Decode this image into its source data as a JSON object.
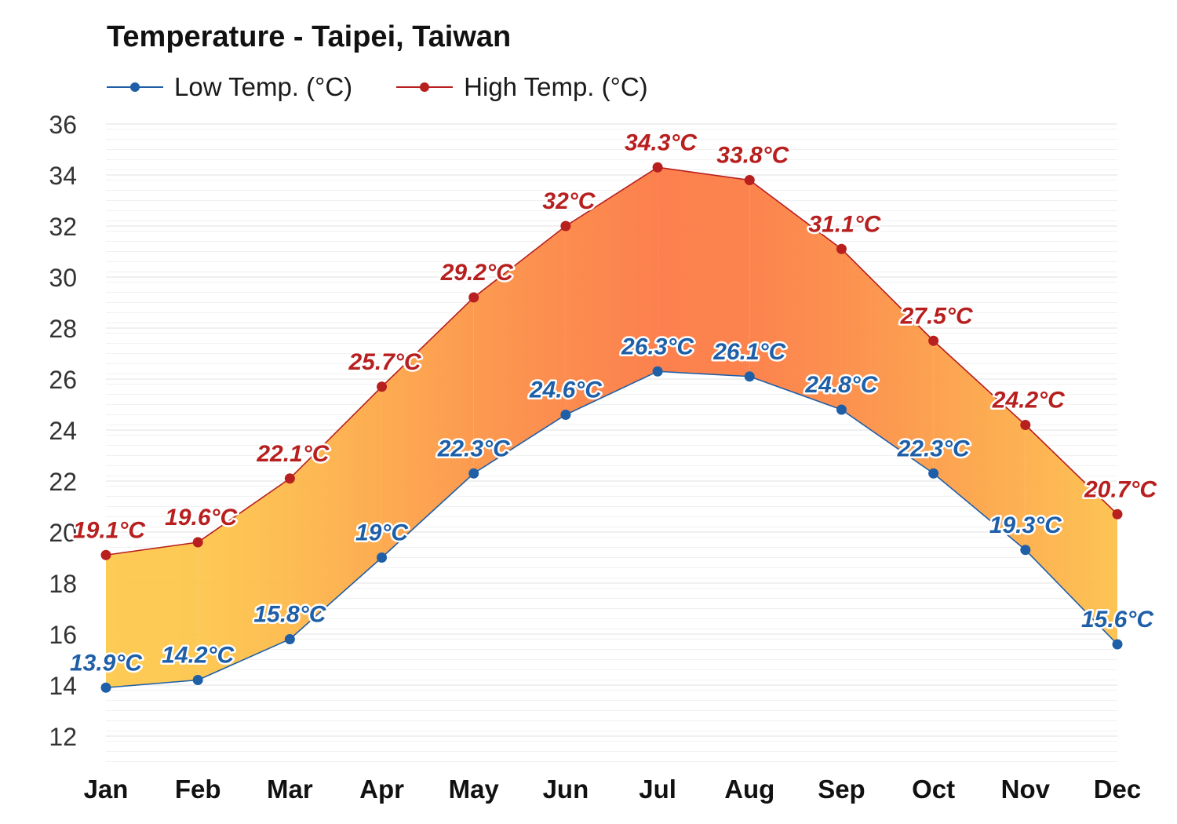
{
  "chart_data": {
    "type": "area",
    "title": "Temperature - Taipei, Taiwan",
    "xlabel": "",
    "ylabel": "",
    "categories": [
      "Jan",
      "Feb",
      "Mar",
      "Apr",
      "May",
      "Jun",
      "Jul",
      "Aug",
      "Sep",
      "Oct",
      "Nov",
      "Dec"
    ],
    "series": [
      {
        "name": "Low Temp. (°C)",
        "color": "#1e5fa8",
        "values": [
          13.9,
          14.2,
          15.8,
          19,
          22.3,
          24.6,
          26.3,
          26.1,
          24.8,
          22.3,
          19.3,
          15.6
        ],
        "labels": [
          "13.9°C",
          "14.2°C",
          "15.8°C",
          "19°C",
          "22.3°C",
          "24.6°C",
          "26.3°C",
          "26.1°C",
          "24.8°C",
          "22.3°C",
          "19.3°C",
          "15.6°C"
        ]
      },
      {
        "name": "High Temp. (°C)",
        "color": "#b81f1f",
        "values": [
          19.1,
          19.6,
          22.1,
          25.7,
          29.2,
          32,
          34.3,
          33.8,
          31.1,
          27.5,
          24.2,
          20.7
        ],
        "labels": [
          "19.1°C",
          "19.6°C",
          "22.1°C",
          "25.7°C",
          "29.2°C",
          "32°C",
          "34.3°C",
          "33.8°C",
          "31.1°C",
          "27.5°C",
          "24.2°C",
          "20.7°C"
        ]
      }
    ],
    "ylim": [
      11,
      36
    ],
    "yticks": [
      "12",
      "14",
      "16",
      "18",
      "20",
      "22",
      "24",
      "26",
      "28",
      "30",
      "32",
      "34",
      "36"
    ],
    "grid": true,
    "legend_position": "top-left",
    "fill_between_colors": [
      "#fdc94c",
      "#fc7a45"
    ]
  }
}
